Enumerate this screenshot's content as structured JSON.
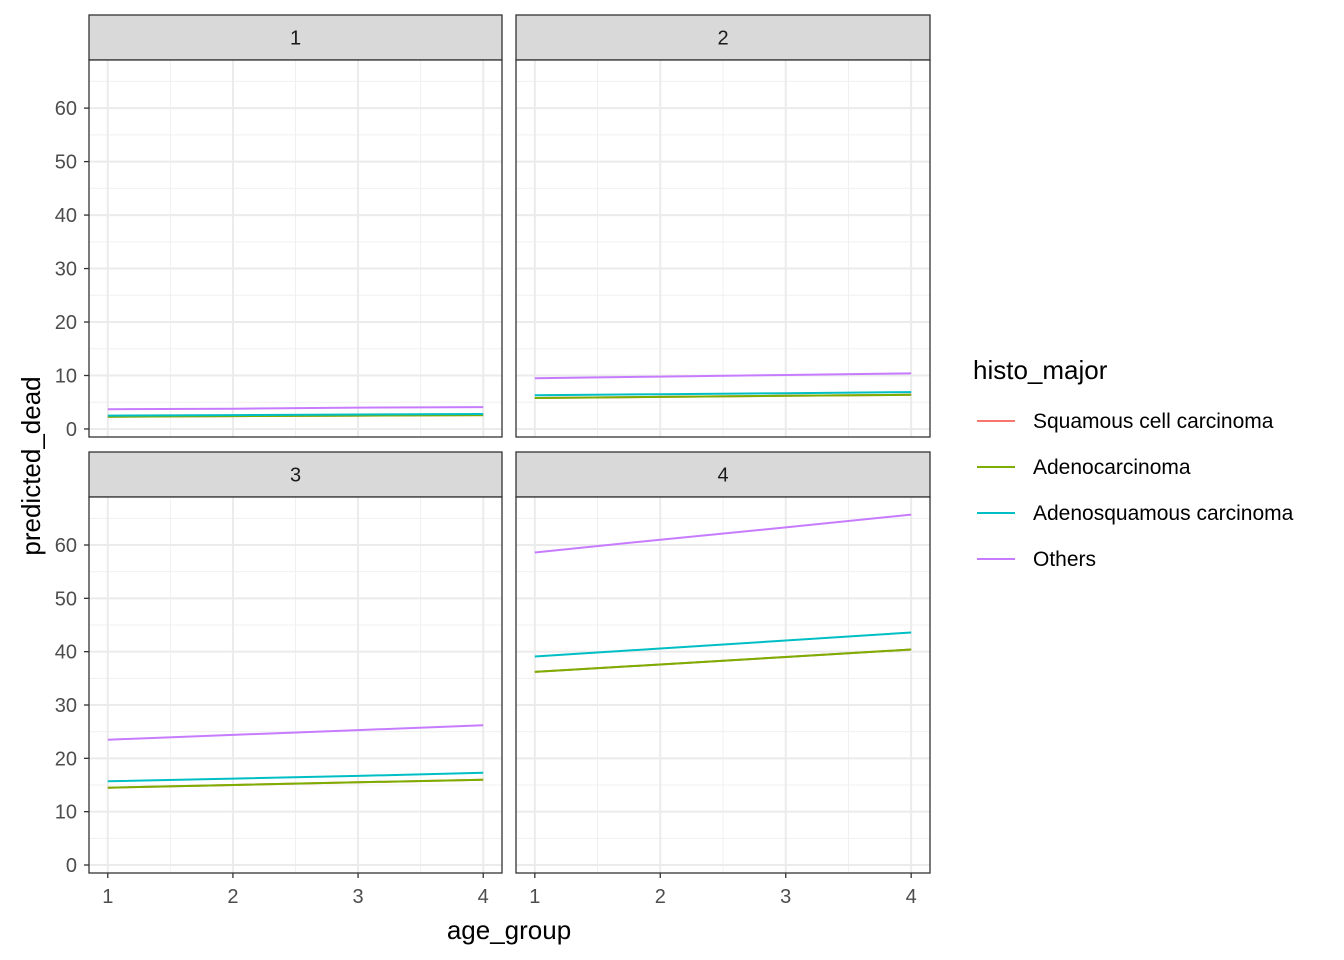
{
  "chart_data": {
    "type": "line",
    "facet_var": "stage",
    "facets": [
      "1",
      "2",
      "3",
      "4"
    ],
    "xlabel": "age_group",
    "ylabel": "predicted_dead",
    "x": [
      1,
      2,
      3,
      4
    ],
    "xlim": [
      0.85,
      4.15
    ],
    "ylim": [
      -1.5,
      69
    ],
    "y_ticks": [
      0,
      10,
      20,
      30,
      40,
      50,
      60
    ],
    "x_ticks": [
      1,
      2,
      3,
      4
    ],
    "grid": true,
    "legend": {
      "title": "histo_major",
      "position": "right",
      "entries": [
        "Squamous cell carcinoma",
        "Adenocarcinoma",
        "Adenosquamous carcinoma",
        "Others"
      ]
    },
    "series_colors": [
      "#F8766D",
      "#7CAE00",
      "#00BFC4",
      "#C77CFF"
    ],
    "panels": [
      {
        "facet": "1",
        "series": [
          {
            "name": "Squamous cell carcinoma",
            "values": [
              2.3,
              2.4,
              2.5,
              2.6
            ]
          },
          {
            "name": "Adenocarcinoma",
            "values": [
              2.3,
              2.4,
              2.5,
              2.6
            ]
          },
          {
            "name": "Adenosquamous carcinoma",
            "values": [
              2.5,
              2.6,
              2.7,
              2.8
            ]
          },
          {
            "name": "Others",
            "values": [
              3.7,
              3.8,
              4.0,
              4.1
            ]
          }
        ]
      },
      {
        "facet": "2",
        "series": [
          {
            "name": "Squamous cell carcinoma",
            "values": [
              5.8,
              6.0,
              6.2,
              6.4
            ]
          },
          {
            "name": "Adenocarcinoma",
            "values": [
              5.8,
              6.0,
              6.2,
              6.4
            ]
          },
          {
            "name": "Adenosquamous carcinoma",
            "values": [
              6.3,
              6.5,
              6.7,
              6.9
            ]
          },
          {
            "name": "Others",
            "values": [
              9.5,
              9.8,
              10.1,
              10.4
            ]
          }
        ]
      },
      {
        "facet": "3",
        "series": [
          {
            "name": "Squamous cell carcinoma",
            "values": [
              14.5,
              15.0,
              15.5,
              16.0
            ]
          },
          {
            "name": "Adenocarcinoma",
            "values": [
              14.5,
              15.0,
              15.5,
              16.0
            ]
          },
          {
            "name": "Adenosquamous carcinoma",
            "values": [
              15.7,
              16.2,
              16.7,
              17.3
            ]
          },
          {
            "name": "Others",
            "values": [
              23.5,
              24.4,
              25.3,
              26.2
            ]
          }
        ]
      },
      {
        "facet": "4",
        "series": [
          {
            "name": "Squamous cell carcinoma",
            "values": [
              36.2,
              37.6,
              39.0,
              40.4
            ]
          },
          {
            "name": "Adenocarcinoma",
            "values": [
              36.2,
              37.6,
              39.0,
              40.4
            ]
          },
          {
            "name": "Adenosquamous carcinoma",
            "values": [
              39.1,
              40.6,
              42.1,
              43.6
            ]
          },
          {
            "name": "Others",
            "values": [
              58.6,
              61.0,
              63.3,
              65.7
            ]
          }
        ]
      }
    ]
  }
}
